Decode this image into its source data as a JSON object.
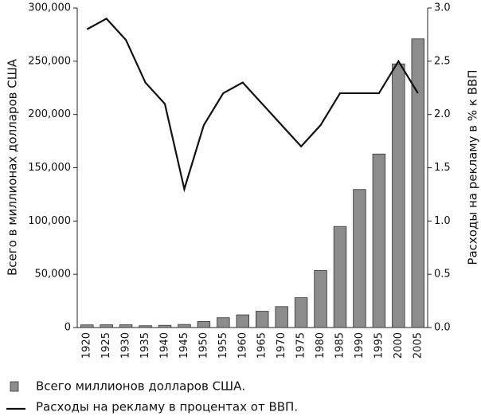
{
  "chart_data": {
    "type": "combo",
    "categories": [
      "1920",
      "1925",
      "1930",
      "1935",
      "1940",
      "1945",
      "1950",
      "1955",
      "1960",
      "1965",
      "1970",
      "1975",
      "1980",
      "1985",
      "1990",
      "1995",
      "2000",
      "2005"
    ],
    "series": [
      {
        "name": "Всего миллионов долларов США.",
        "type": "bar",
        "color": "#8c8c8c",
        "values": [
          2500,
          2600,
          2600,
          1700,
          2100,
          2900,
          5700,
          9200,
          11900,
          15300,
          19600,
          28000,
          53500,
          94900,
          129600,
          162900,
          247500,
          271000
        ]
      },
      {
        "name": "Расходы на рекламу в процентах от ВВП.",
        "type": "line",
        "axis": "y2",
        "color": "#111111",
        "values": [
          2.8,
          2.9,
          2.7,
          2.3,
          2.1,
          1.3,
          1.9,
          2.2,
          2.3,
          2.1,
          1.9,
          1.7,
          1.9,
          2.2,
          2.2,
          2.2,
          2.5,
          2.2
        ]
      }
    ],
    "ylabel": "Всего в миллионах долларов США",
    "y2label": "Расходы на рекламу в % к ВВП",
    "ylim": [
      0,
      300000
    ],
    "yticks": [
      0,
      {
        "value": 50000,
        "label": "50,000"
      },
      {
        "value": 100000,
        "label": "100,000"
      },
      {
        "value": 150000,
        "label": "150,000"
      },
      {
        "value": 200000,
        "label": "200,000"
      },
      {
        "value": 250000,
        "label": "250,000"
      },
      {
        "value": 300000,
        "label": "300,000"
      }
    ],
    "y2lim": [
      0,
      3
    ],
    "y2ticks": [
      {
        "value": 0,
        "label": "0.0"
      },
      0.5,
      {
        "value": 1,
        "label": "1.0"
      },
      1.5,
      {
        "value": 2,
        "label": "2.0"
      },
      2.5,
      {
        "value": 3,
        "label": "3.0"
      }
    ],
    "grid": false
  }
}
